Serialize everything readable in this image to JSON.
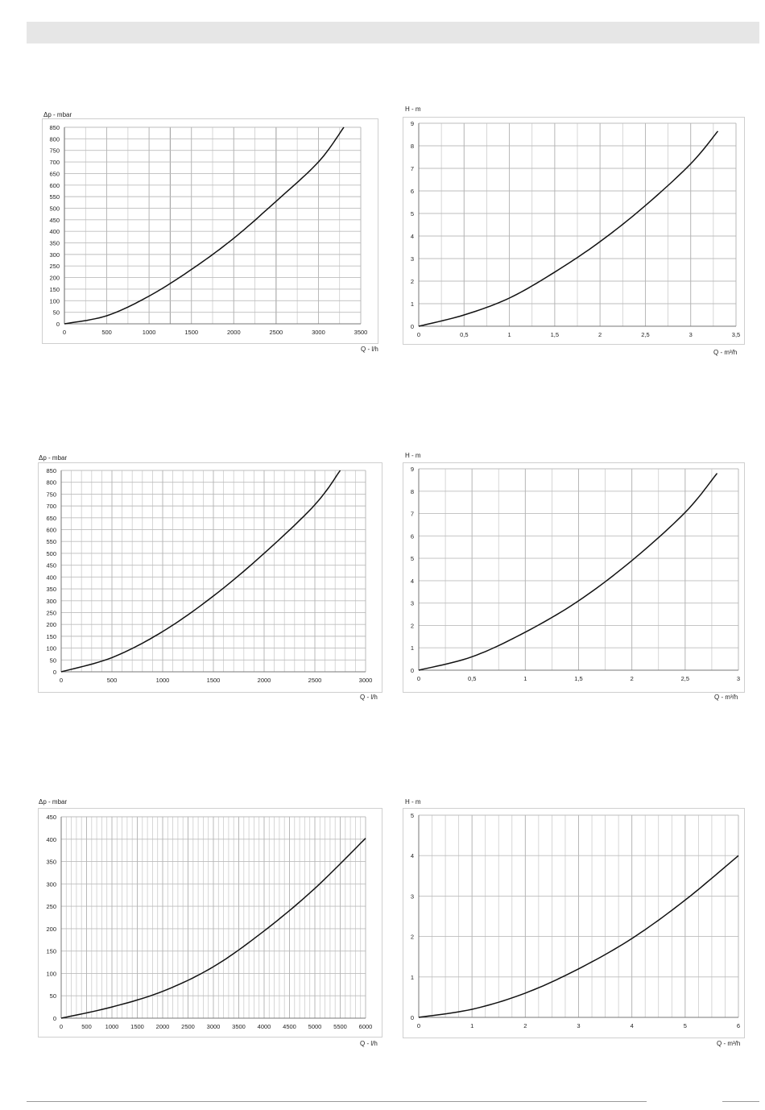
{
  "chart_data": [
    {
      "type": "line",
      "ylabel": "Δp - mbar",
      "xlabel": "Q - l/h",
      "xlim": [
        0,
        3500
      ],
      "ylim": [
        0,
        850
      ],
      "xticks": [
        0,
        500,
        1000,
        1500,
        2000,
        2500,
        3000,
        3500
      ],
      "yticks": [
        0,
        50,
        100,
        150,
        200,
        250,
        300,
        350,
        400,
        450,
        500,
        550,
        600,
        650,
        700,
        750,
        800,
        850
      ],
      "x_minor_step": 250,
      "x_major_step": 1250,
      "grid": true,
      "series": [
        {
          "x": [
            0,
            500,
            1000,
            1500,
            2000,
            2500,
            3000,
            3300
          ],
          "y": [
            0,
            35,
            120,
            235,
            370,
            530,
            700,
            850
          ]
        }
      ]
    },
    {
      "type": "line",
      "ylabel": "H - m",
      "xlabel": "Q - m³/h",
      "xlim": [
        0,
        3.5
      ],
      "ylim": [
        0,
        9
      ],
      "xticks": [
        0,
        0.5,
        1,
        1.5,
        2,
        2.5,
        3,
        3.5
      ],
      "xtick_labels": [
        "0",
        "0,5",
        "1",
        "1,5",
        "2",
        "2,5",
        "3",
        "3,5"
      ],
      "yticks": [
        0,
        1,
        2,
        3,
        4,
        5,
        6,
        7,
        8,
        9
      ],
      "x_minor_step": 0.25,
      "grid": true,
      "series": [
        {
          "x": [
            0,
            0.5,
            1,
            1.5,
            2,
            2.5,
            3,
            3.3
          ],
          "y": [
            0,
            0.5,
            1.25,
            2.4,
            3.75,
            5.35,
            7.2,
            8.65
          ]
        }
      ]
    },
    {
      "type": "line",
      "ylabel": "Δp - mbar",
      "xlabel": "Q - l/h",
      "xlim": [
        0,
        3000
      ],
      "ylim": [
        0,
        850
      ],
      "xticks": [
        0,
        500,
        1000,
        1500,
        2000,
        2500,
        3000
      ],
      "yticks": [
        0,
        50,
        100,
        150,
        200,
        250,
        300,
        350,
        400,
        450,
        500,
        550,
        600,
        650,
        700,
        750,
        800,
        850
      ],
      "x_minor_step": 100,
      "grid": true,
      "series": [
        {
          "x": [
            0,
            500,
            1000,
            1500,
            2000,
            2500,
            2750
          ],
          "y": [
            0,
            60,
            170,
            320,
            500,
            705,
            850
          ]
        }
      ]
    },
    {
      "type": "line",
      "ylabel": "H - m",
      "xlabel": "Q - m³/h",
      "xlim": [
        0,
        3
      ],
      "ylim": [
        0,
        9
      ],
      "xticks": [
        0,
        0.5,
        1,
        1.5,
        2,
        2.5,
        3
      ],
      "xtick_labels": [
        "0",
        "0,5",
        "1",
        "1,5",
        "2",
        "2,5",
        "3"
      ],
      "yticks": [
        0,
        1,
        2,
        3,
        4,
        5,
        6,
        7,
        8,
        9
      ],
      "x_minor_step": 0.25,
      "grid": true,
      "series": [
        {
          "x": [
            0,
            0.5,
            1,
            1.5,
            2,
            2.5,
            2.8
          ],
          "y": [
            0,
            0.6,
            1.7,
            3.1,
            4.9,
            7.05,
            8.8
          ]
        }
      ]
    },
    {
      "type": "line",
      "ylabel": "Δp - mbar",
      "xlabel": "Q - l/h",
      "xlim": [
        0,
        6000
      ],
      "ylim": [
        0,
        450
      ],
      "xticks": [
        0,
        500,
        1000,
        1500,
        2000,
        2500,
        3000,
        3500,
        4000,
        4500,
        5000,
        5500,
        6000
      ],
      "yticks": [
        0,
        50,
        100,
        150,
        200,
        250,
        300,
        350,
        400,
        450
      ],
      "x_minor_step": 100,
      "grid": true,
      "series": [
        {
          "x": [
            0,
            1000,
            2000,
            3000,
            4000,
            5000,
            6000
          ],
          "y": [
            0,
            25,
            60,
            115,
            195,
            290,
            402
          ]
        }
      ]
    },
    {
      "type": "line",
      "ylabel": "H - m",
      "xlabel": "Q - m³/h",
      "xlim": [
        0,
        6
      ],
      "ylim": [
        0,
        5
      ],
      "xticks": [
        0,
        1,
        2,
        3,
        4,
        5,
        6
      ],
      "yticks": [
        0,
        1,
        2,
        3,
        4,
        5
      ],
      "x_minor_step": 0.25,
      "grid": true,
      "series": [
        {
          "x": [
            0,
            1,
            2,
            3,
            4,
            5,
            6
          ],
          "y": [
            0,
            0.2,
            0.6,
            1.2,
            1.95,
            2.9,
            4.0
          ]
        }
      ]
    }
  ]
}
